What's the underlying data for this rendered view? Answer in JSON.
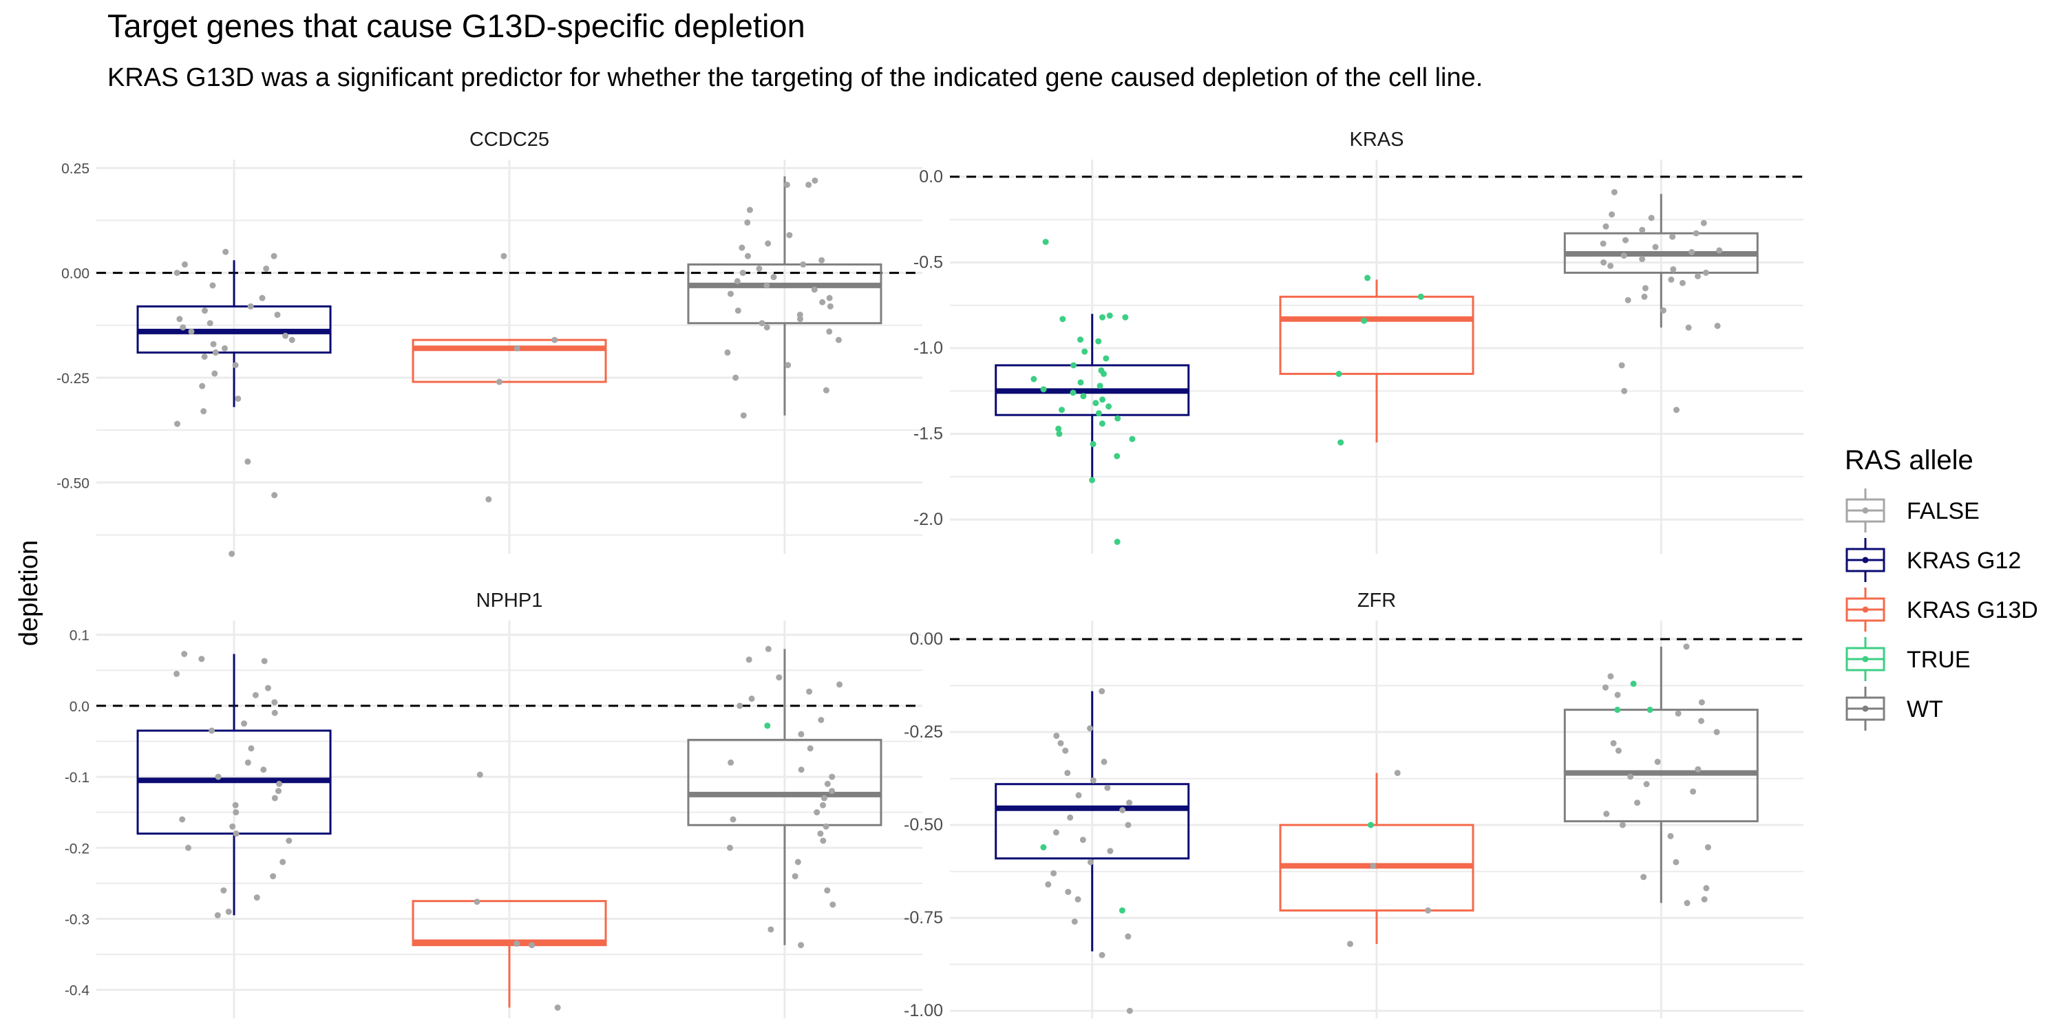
{
  "title": "Target genes that cause G13D-specific depletion",
  "subtitle": "KRAS G13D was a significant predictor for whether the targeting of the indicated gene caused depletion of the cell line.",
  "colors": {
    "FALSE": "#a6a6a6",
    "KRAS G12": "#0b0b73",
    "KRAS G13D": "#f4694b",
    "TRUE": "#3ccf84",
    "WT": "#7f7f7f",
    "grid": "#ebebeb",
    "refline": "#000000"
  },
  "chart_data": {
    "type": "boxplot-facets",
    "ylabel": "depletion",
    "legend": {
      "title": "RAS allele",
      "position": "right",
      "entries": [
        "FALSE",
        "KRAS G12",
        "KRAS G13D",
        "TRUE",
        "WT"
      ]
    },
    "grid": true,
    "reference_line": 0,
    "groups": [
      "KRAS G12",
      "KRAS G13D",
      "WT"
    ],
    "facets": [
      {
        "name": "CCDC25",
        "ylim": [
          -0.67,
          0.27
        ],
        "yticks": [
          0.25,
          0.0,
          -0.25,
          -0.5
        ],
        "yticklabels": [
          "0.25",
          "0.00",
          "-0.25",
          "-0.50"
        ],
        "boxes": [
          {
            "group": "KRAS G12",
            "q1": -0.19,
            "median": -0.14,
            "q3": -0.08,
            "whisker_low": -0.32,
            "whisker_high": 0.03
          },
          {
            "group": "KRAS G13D",
            "q1": -0.26,
            "median": -0.18,
            "q3": -0.16,
            "whisker_low": -0.26,
            "whisker_high": -0.16
          },
          {
            "group": "WT",
            "q1": -0.12,
            "median": -0.03,
            "q3": 0.02,
            "whisker_low": -0.34,
            "whisker_high": 0.23
          }
        ],
        "points": [
          {
            "group": "KRAS G12",
            "status": "FALSE",
            "values": [
              0.05,
              0.04,
              0.02,
              0.01,
              0.0,
              -0.03,
              -0.06,
              -0.08,
              -0.09,
              -0.1,
              -0.11,
              -0.12,
              -0.13,
              -0.14,
              -0.15,
              -0.16,
              -0.17,
              -0.18,
              -0.19,
              -0.2,
              -0.22,
              -0.24,
              -0.27,
              -0.3,
              -0.33,
              -0.36,
              -0.45,
              -0.53,
              -0.67
            ]
          },
          {
            "group": "KRAS G13D",
            "status": "FALSE",
            "values": [
              0.04,
              -0.16,
              -0.18,
              -0.26,
              -0.54
            ]
          },
          {
            "group": "WT",
            "status": "FALSE",
            "values": [
              0.22,
              0.21,
              0.21,
              0.15,
              0.12,
              0.09,
              0.07,
              0.06,
              0.04,
              0.03,
              0.02,
              0.01,
              0.0,
              -0.01,
              -0.02,
              -0.03,
              -0.04,
              -0.05,
              -0.06,
              -0.07,
              -0.08,
              -0.09,
              -0.1,
              -0.11,
              -0.12,
              -0.13,
              -0.14,
              -0.16,
              -0.19,
              -0.22,
              -0.25,
              -0.28,
              -0.34
            ]
          }
        ]
      },
      {
        "name": "KRAS",
        "ylim": [
          -2.2,
          0.1
        ],
        "yticks": [
          0.0,
          -0.5,
          -1.0,
          -1.5,
          -2.0
        ],
        "yticklabels": [
          "0.0",
          "-0.5",
          "-1.0",
          "-1.5",
          "-2.0"
        ],
        "boxes": [
          {
            "group": "KRAS G12",
            "q1": -1.39,
            "median": -1.25,
            "q3": -1.1,
            "whisker_low": -1.77,
            "whisker_high": -0.8
          },
          {
            "group": "KRAS G13D",
            "q1": -1.15,
            "median": -0.83,
            "q3": -0.7,
            "whisker_low": -1.55,
            "whisker_high": -0.6
          },
          {
            "group": "WT",
            "q1": -0.56,
            "median": -0.45,
            "q3": -0.33,
            "whisker_low": -0.88,
            "whisker_high": -0.1
          }
        ],
        "points": [
          {
            "group": "KRAS G12",
            "status": "TRUE",
            "values": [
              -0.38,
              -0.81,
              -0.82,
              -0.82,
              -0.83,
              -0.95,
              -0.96,
              -1.02,
              -1.06,
              -1.1,
              -1.13,
              -1.15,
              -1.18,
              -1.2,
              -1.22,
              -1.24,
              -1.26,
              -1.28,
              -1.3,
              -1.32,
              -1.34,
              -1.36,
              -1.38,
              -1.41,
              -1.44,
              -1.47,
              -1.5,
              -1.53,
              -1.56,
              -1.63,
              -1.77,
              -2.13
            ]
          },
          {
            "group": "KRAS G13D",
            "status": "TRUE",
            "values": [
              -0.59,
              -0.7,
              -0.84,
              -1.15,
              -1.55
            ]
          },
          {
            "group": "WT",
            "status": "FALSE",
            "values": [
              -0.09,
              -0.22,
              -0.24,
              -0.27,
              -0.29,
              -0.31,
              -0.33,
              -0.35,
              -0.37,
              -0.39,
              -0.41,
              -0.43,
              -0.44,
              -0.46,
              -0.48,
              -0.5,
              -0.52,
              -0.54,
              -0.56,
              -0.58,
              -0.6,
              -0.62,
              -0.65,
              -0.7,
              -0.72,
              -0.78,
              -0.87,
              -0.88,
              -1.1,
              -1.25,
              -1.36
            ]
          }
        ]
      },
      {
        "name": "NPHP1",
        "ylim": [
          -0.44,
          0.12
        ],
        "yticks": [
          0.1,
          0.0,
          -0.1,
          -0.2,
          -0.3,
          -0.4
        ],
        "yticklabels": [
          "0.1",
          "0.0",
          "-0.1",
          "-0.2",
          "-0.3",
          "-0.4"
        ],
        "boxes": [
          {
            "group": "KRAS G12",
            "q1": -0.18,
            "median": -0.105,
            "q3": -0.035,
            "whisker_low": -0.295,
            "whisker_high": 0.073
          },
          {
            "group": "KRAS G13D",
            "q1": -0.337,
            "median": -0.333,
            "q3": -0.275,
            "whisker_low": -0.425,
            "whisker_high": -0.275
          },
          {
            "group": "WT",
            "q1": -0.168,
            "median": -0.125,
            "q3": -0.048,
            "whisker_low": -0.337,
            "whisker_high": 0.08
          }
        ],
        "points": [
          {
            "group": "KRAS G12",
            "status": "FALSE",
            "values": [
              0.073,
              0.066,
              0.063,
              0.045,
              0.025,
              0.015,
              0.005,
              -0.01,
              -0.025,
              -0.035,
              -0.06,
              -0.08,
              -0.09,
              -0.1,
              -0.11,
              -0.12,
              -0.13,
              -0.14,
              -0.15,
              -0.16,
              -0.17,
              -0.18,
              -0.19,
              -0.2,
              -0.22,
              -0.24,
              -0.26,
              -0.27,
              -0.29,
              -0.295
            ]
          },
          {
            "group": "KRAS G13D",
            "status": "FALSE",
            "values": [
              -0.097,
              -0.276,
              -0.335,
              -0.337,
              -0.425
            ]
          },
          {
            "group": "WT",
            "status": "FALSE",
            "values": [
              0.08,
              0.065,
              0.04,
              0.03,
              0.02,
              0.01,
              0.0,
              -0.02,
              -0.04,
              -0.06,
              -0.08,
              -0.09,
              -0.1,
              -0.11,
              -0.12,
              -0.13,
              -0.14,
              -0.15,
              -0.16,
              -0.17,
              -0.18,
              -0.19,
              -0.2,
              -0.22,
              -0.24,
              -0.26,
              -0.28,
              -0.315,
              -0.337
            ]
          },
          {
            "group": "WT",
            "status": "TRUE",
            "values": [
              -0.028
            ]
          }
        ]
      },
      {
        "name": "ZFR",
        "ylim": [
          -1.02,
          0.05
        ],
        "yticks": [
          0.0,
          -0.25,
          -0.5,
          -0.75,
          -1.0
        ],
        "yticklabels": [
          "0.00",
          "-0.25",
          "-0.50",
          "-0.75",
          "-1.00"
        ],
        "boxes": [
          {
            "group": "KRAS G12",
            "q1": -0.59,
            "median": -0.455,
            "q3": -0.39,
            "whisker_low": -0.84,
            "whisker_high": -0.14
          },
          {
            "group": "KRAS G13D",
            "q1": -0.73,
            "median": -0.61,
            "q3": -0.5,
            "whisker_low": -0.82,
            "whisker_high": -0.36
          },
          {
            "group": "WT",
            "q1": -0.49,
            "median": -0.36,
            "q3": -0.19,
            "whisker_low": -0.71,
            "whisker_high": -0.02
          }
        ],
        "points": [
          {
            "group": "KRAS G12",
            "status": "FALSE",
            "values": [
              -0.14,
              -0.24,
              -0.26,
              -0.28,
              -0.3,
              -0.33,
              -0.36,
              -0.38,
              -0.4,
              -0.42,
              -0.44,
              -0.46,
              -0.48,
              -0.5,
              -0.52,
              -0.54,
              -0.57,
              -0.6,
              -0.63,
              -0.66,
              -0.68,
              -0.7,
              -0.76,
              -0.8,
              -0.85,
              -1.0
            ]
          },
          {
            "group": "KRAS G12",
            "status": "TRUE",
            "values": [
              -0.56,
              -0.73
            ]
          },
          {
            "group": "KRAS G13D",
            "status": "FALSE",
            "values": [
              -0.36,
              -0.61,
              -0.73,
              -0.82
            ]
          },
          {
            "group": "KRAS G13D",
            "status": "TRUE",
            "values": [
              -0.5
            ]
          },
          {
            "group": "WT",
            "status": "FALSE",
            "values": [
              -0.02,
              -0.1,
              -0.13,
              -0.15,
              -0.17,
              -0.2,
              -0.22,
              -0.25,
              -0.28,
              -0.3,
              -0.33,
              -0.35,
              -0.37,
              -0.39,
              -0.41,
              -0.44,
              -0.47,
              -0.5,
              -0.53,
              -0.56,
              -0.6,
              -0.64,
              -0.67,
              -0.7,
              -0.71
            ]
          },
          {
            "group": "WT",
            "status": "TRUE",
            "values": [
              -0.12,
              -0.19,
              -0.19
            ]
          }
        ]
      }
    ]
  }
}
